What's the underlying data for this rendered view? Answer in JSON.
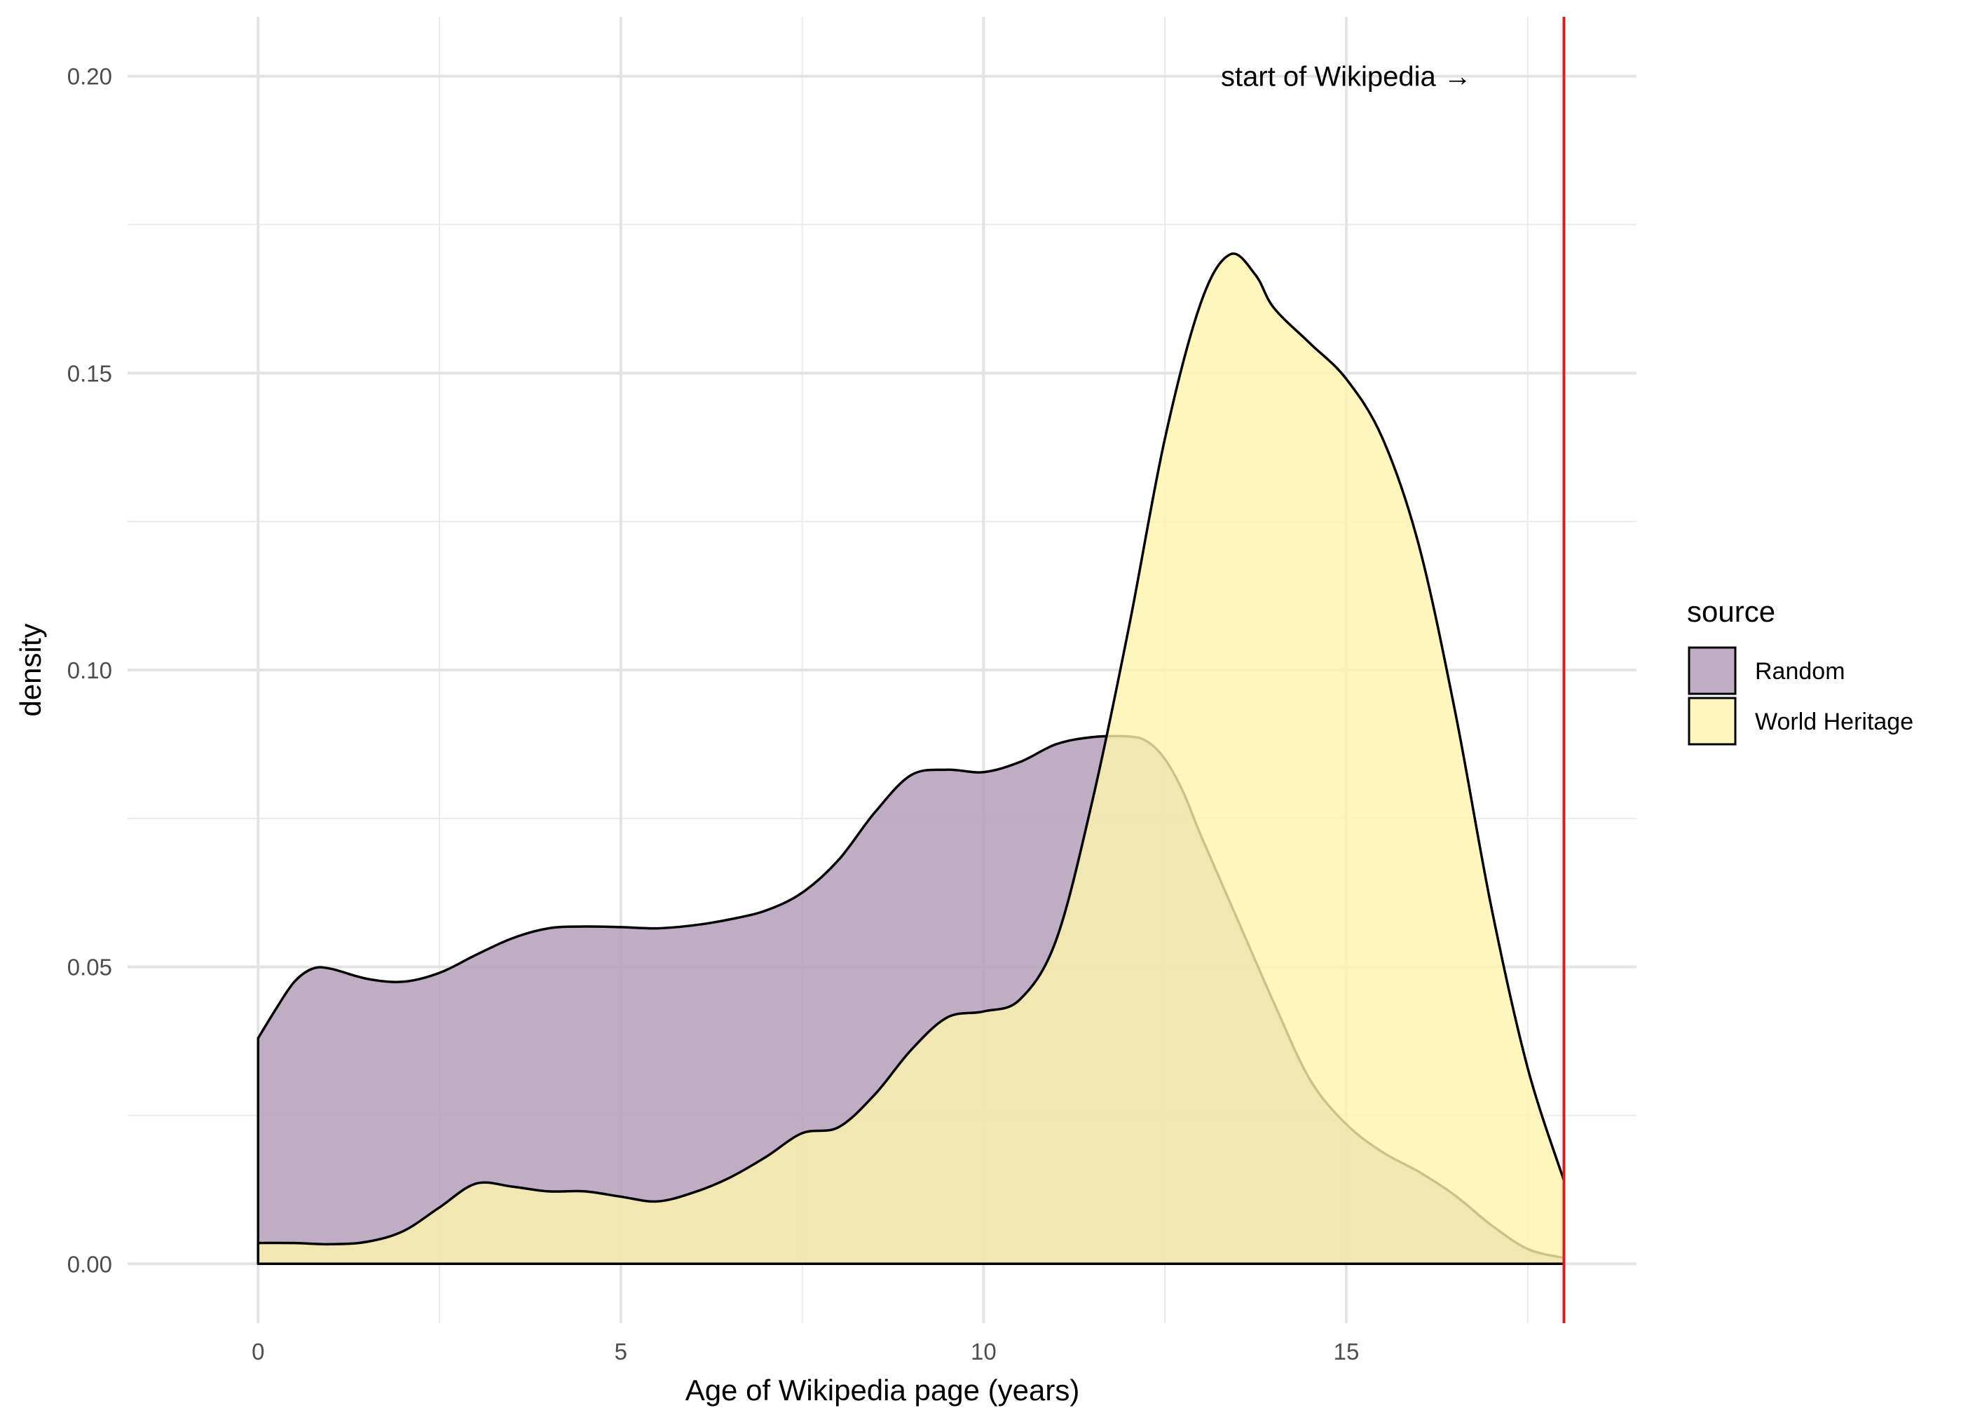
{
  "chart_data": {
    "type": "area",
    "xlabel": "Age of Wikipedia page (years)",
    "ylabel": "density",
    "xlim": [
      -1.8,
      19.0
    ],
    "ylim": [
      -0.01,
      0.21
    ],
    "x_ticks": [
      0,
      5,
      10,
      15
    ],
    "y_ticks": [
      0.0,
      0.05,
      0.1,
      0.15,
      0.2
    ],
    "x_tick_labels": [
      "0",
      "5",
      "10",
      "15"
    ],
    "y_tick_labels": [
      "0.00",
      "0.05",
      "0.10",
      "0.15",
      "0.20"
    ],
    "x_minor_ticks": [
      2.5,
      7.5,
      12.5,
      17.5
    ],
    "y_minor_ticks": [
      0.025,
      0.075,
      0.125,
      0.175
    ],
    "grid": true,
    "legend": {
      "title": "source",
      "position": "right",
      "entries": [
        "Random",
        "World Heritage"
      ]
    },
    "reference_line": {
      "x": 18.0,
      "color": "#e31a1c"
    },
    "annotation": {
      "text": "start of Wikipedia →",
      "x": 15.0,
      "y": 0.2
    },
    "series": [
      {
        "name": "Random",
        "color": "#b49fba",
        "opacity": 0.85,
        "points": [
          [
            0,
            0.038
          ],
          [
            0.25,
            0.043
          ],
          [
            0.5,
            0.0475
          ],
          [
            0.75,
            0.0497
          ],
          [
            1,
            0.0497
          ],
          [
            1.5,
            0.048
          ],
          [
            2,
            0.0475
          ],
          [
            2.5,
            0.049
          ],
          [
            3,
            0.052
          ],
          [
            3.5,
            0.0548
          ],
          [
            4,
            0.0565
          ],
          [
            4.5,
            0.0568
          ],
          [
            5,
            0.0567
          ],
          [
            5.5,
            0.0565
          ],
          [
            6,
            0.057
          ],
          [
            6.5,
            0.058
          ],
          [
            7,
            0.0595
          ],
          [
            7.5,
            0.0625
          ],
          [
            8,
            0.068
          ],
          [
            8.5,
            0.076
          ],
          [
            9,
            0.0823
          ],
          [
            9.5,
            0.0832
          ],
          [
            10,
            0.0828
          ],
          [
            10.5,
            0.0845
          ],
          [
            11,
            0.0875
          ],
          [
            11.5,
            0.0887
          ],
          [
            12,
            0.0888
          ],
          [
            12.25,
            0.088
          ],
          [
            12.5,
            0.085
          ],
          [
            12.75,
            0.0795
          ],
          [
            13,
            0.072
          ],
          [
            13.5,
            0.058
          ],
          [
            14,
            0.044
          ],
          [
            14.5,
            0.031
          ],
          [
            15,
            0.0235
          ],
          [
            15.5,
            0.0188
          ],
          [
            16,
            0.0155
          ],
          [
            16.5,
            0.0115
          ],
          [
            17,
            0.0065
          ],
          [
            17.5,
            0.0025
          ],
          [
            18,
            0.001
          ]
        ]
      },
      {
        "name": "World Heritage",
        "color": "#fdf5ae",
        "opacity": 0.8,
        "points": [
          [
            0,
            0.0035
          ],
          [
            0.5,
            0.0035
          ],
          [
            1,
            0.0033
          ],
          [
            1.5,
            0.0037
          ],
          [
            2,
            0.0055
          ],
          [
            2.5,
            0.0095
          ],
          [
            3,
            0.0135
          ],
          [
            3.5,
            0.013
          ],
          [
            4,
            0.0122
          ],
          [
            4.5,
            0.0122
          ],
          [
            5,
            0.0113
          ],
          [
            5.5,
            0.0105
          ],
          [
            6,
            0.012
          ],
          [
            6.5,
            0.0145
          ],
          [
            7,
            0.018
          ],
          [
            7.5,
            0.022
          ],
          [
            8,
            0.023
          ],
          [
            8.5,
            0.0285
          ],
          [
            9,
            0.036
          ],
          [
            9.5,
            0.0415
          ],
          [
            10,
            0.0425
          ],
          [
            10.5,
            0.0445
          ],
          [
            11,
            0.0545
          ],
          [
            11.5,
            0.078
          ],
          [
            12,
            0.107
          ],
          [
            12.5,
            0.139
          ],
          [
            13,
            0.162
          ],
          [
            13.4,
            0.17
          ],
          [
            13.75,
            0.1665
          ],
          [
            14,
            0.161
          ],
          [
            14.5,
            0.155
          ],
          [
            15,
            0.149
          ],
          [
            15.5,
            0.139
          ],
          [
            16,
            0.121
          ],
          [
            16.5,
            0.093
          ],
          [
            17,
            0.06
          ],
          [
            17.5,
            0.033
          ],
          [
            18,
            0.014
          ]
        ]
      }
    ]
  }
}
